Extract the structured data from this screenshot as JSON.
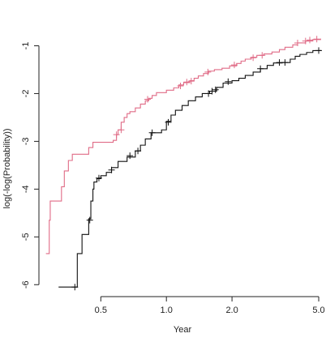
{
  "chart_data": {
    "type": "line",
    "step": true,
    "title": "",
    "xlabel": "Year",
    "ylabel": "log(-log(Probability))",
    "xscale": "log",
    "xlim": [
      0.26,
      5.4
    ],
    "ylim": [
      -6.25,
      -0.72
    ],
    "xticks": [
      0.5,
      1.0,
      2.0,
      5.0
    ],
    "xtick_labels": [
      "0.5",
      "1.0",
      "2.0",
      "5.0"
    ],
    "yticks": [
      -1,
      -2,
      -3,
      -4,
      -5,
      -6
    ],
    "ytick_labels": [
      "-1",
      "-2",
      "-3",
      "-4",
      "-5",
      "-6"
    ],
    "grid": false,
    "series": [
      {
        "color": "#e06b86",
        "points": [
          [
            0.28,
            -5.35
          ],
          [
            0.29,
            -4.65
          ],
          [
            0.293,
            -4.25
          ],
          [
            0.33,
            -3.95
          ],
          [
            0.34,
            -3.62
          ],
          [
            0.355,
            -3.4
          ],
          [
            0.37,
            -3.27
          ],
          [
            0.44,
            -3.13
          ],
          [
            0.46,
            -3.02
          ],
          [
            0.57,
            -2.98
          ],
          [
            0.59,
            -2.86
          ],
          [
            0.6,
            -2.76
          ],
          [
            0.62,
            -2.6
          ],
          [
            0.64,
            -2.5
          ],
          [
            0.66,
            -2.42
          ],
          [
            0.68,
            -2.38
          ],
          [
            0.72,
            -2.3
          ],
          [
            0.76,
            -2.22
          ],
          [
            0.8,
            -2.15
          ],
          [
            0.83,
            -2.1
          ],
          [
            0.86,
            -2.04
          ],
          [
            0.9,
            -1.98
          ],
          [
            1.0,
            -1.93
          ],
          [
            1.08,
            -1.88
          ],
          [
            1.14,
            -1.82
          ],
          [
            1.2,
            -1.77
          ],
          [
            1.28,
            -1.73
          ],
          [
            1.34,
            -1.68
          ],
          [
            1.4,
            -1.63
          ],
          [
            1.48,
            -1.58
          ],
          [
            1.56,
            -1.53
          ],
          [
            1.66,
            -1.5
          ],
          [
            1.8,
            -1.47
          ],
          [
            1.95,
            -1.42
          ],
          [
            2.1,
            -1.37
          ],
          [
            2.2,
            -1.32
          ],
          [
            2.3,
            -1.28
          ],
          [
            2.45,
            -1.24
          ],
          [
            2.6,
            -1.2
          ],
          [
            2.8,
            -1.17
          ],
          [
            3.05,
            -1.13
          ],
          [
            3.3,
            -1.08
          ],
          [
            3.5,
            -1.03
          ],
          [
            3.8,
            -0.98
          ],
          [
            4.0,
            -0.94
          ],
          [
            4.35,
            -0.9
          ],
          [
            4.7,
            -0.87
          ],
          [
            5.1,
            -0.85
          ]
        ],
        "censor_marks": [
          [
            0.59,
            -2.86
          ],
          [
            0.62,
            -2.76
          ],
          [
            0.82,
            -2.12
          ],
          [
            1.16,
            -1.84
          ],
          [
            1.24,
            -1.76
          ],
          [
            1.3,
            -1.74
          ],
          [
            1.55,
            -1.55
          ],
          [
            2.05,
            -1.4
          ],
          [
            2.5,
            -1.25
          ],
          [
            2.75,
            -1.2
          ],
          [
            4.0,
            -0.94
          ],
          [
            4.35,
            -0.9
          ],
          [
            4.55,
            -0.88
          ],
          [
            4.9,
            -0.86
          ]
        ]
      },
      {
        "color": "#111111",
        "points": [
          [
            0.32,
            -6.05
          ],
          [
            0.38,
            -6.05
          ],
          [
            0.39,
            -5.35
          ],
          [
            0.41,
            -4.95
          ],
          [
            0.44,
            -4.62
          ],
          [
            0.45,
            -4.25
          ],
          [
            0.46,
            -4.0
          ],
          [
            0.465,
            -3.85
          ],
          [
            0.48,
            -3.78
          ],
          [
            0.5,
            -3.72
          ],
          [
            0.53,
            -3.65
          ],
          [
            0.56,
            -3.55
          ],
          [
            0.6,
            -3.42
          ],
          [
            0.66,
            -3.33
          ],
          [
            0.72,
            -3.2
          ],
          [
            0.76,
            -3.08
          ],
          [
            0.8,
            -2.95
          ],
          [
            0.85,
            -2.82
          ],
          [
            0.95,
            -2.76
          ],
          [
            1.0,
            -2.58
          ],
          [
            1.05,
            -2.45
          ],
          [
            1.1,
            -2.35
          ],
          [
            1.18,
            -2.25
          ],
          [
            1.26,
            -2.15
          ],
          [
            1.36,
            -2.07
          ],
          [
            1.46,
            -2.0
          ],
          [
            1.58,
            -1.95
          ],
          [
            1.7,
            -1.87
          ],
          [
            1.82,
            -1.78
          ],
          [
            2.0,
            -1.73
          ],
          [
            2.15,
            -1.68
          ],
          [
            2.3,
            -1.62
          ],
          [
            2.5,
            -1.55
          ],
          [
            2.7,
            -1.48
          ],
          [
            2.9,
            -1.41
          ],
          [
            3.1,
            -1.36
          ],
          [
            3.4,
            -1.35
          ],
          [
            3.7,
            -1.28
          ],
          [
            3.9,
            -1.22
          ],
          [
            4.1,
            -1.18
          ],
          [
            4.4,
            -1.14
          ],
          [
            4.7,
            -1.1
          ],
          [
            5.1,
            -1.09
          ]
        ],
        "censor_marks": [
          [
            0.38,
            -6.05
          ],
          [
            0.445,
            -4.65
          ],
          [
            0.49,
            -3.77
          ],
          [
            0.56,
            -3.6
          ],
          [
            0.68,
            -3.3
          ],
          [
            0.74,
            -3.2
          ],
          [
            0.86,
            -2.82
          ],
          [
            1.02,
            -2.6
          ],
          [
            1.56,
            -2.0
          ],
          [
            1.62,
            -1.95
          ],
          [
            1.68,
            -1.92
          ],
          [
            1.92,
            -1.75
          ],
          [
            2.7,
            -1.48
          ],
          [
            3.3,
            -1.35
          ],
          [
            3.5,
            -1.35
          ],
          [
            5.0,
            -1.1
          ]
        ]
      }
    ]
  }
}
